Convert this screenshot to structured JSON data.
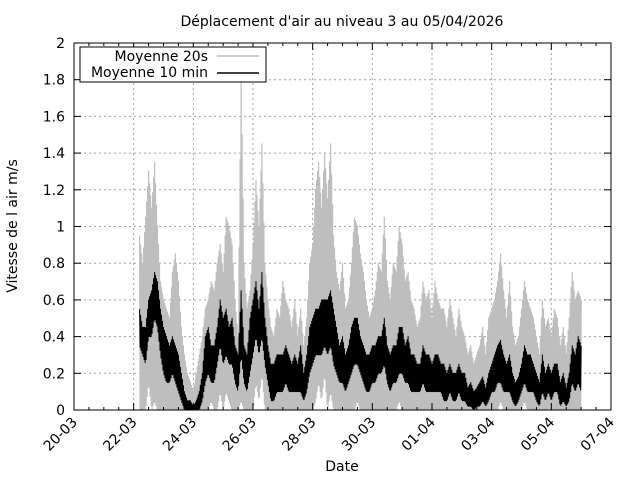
{
  "chart_data": {
    "type": "line",
    "title": "Déplacement d'air au niveau 3 au 05/04/2026",
    "xlabel": "Date",
    "ylabel": "Vitesse de l air m/s",
    "x_tick_labels": [
      "20-03",
      "22-03",
      "24-03",
      "26-03",
      "28-03",
      "30-03",
      "01-04",
      "03-04",
      "05-04",
      "07-04"
    ],
    "x_tick_days": [
      0,
      2,
      4,
      6,
      8,
      10,
      12,
      14,
      16,
      18
    ],
    "x_range_days": [
      0,
      18
    ],
    "ylim": [
      0,
      2
    ],
    "y_ticks": [
      0,
      0.2,
      0.4,
      0.6,
      0.8,
      1,
      1.2,
      1.4,
      1.6,
      1.8,
      2
    ],
    "y_tick_labels": [
      "0",
      "0.2",
      "0.4",
      "0.6",
      "0.8",
      "1",
      "1.2",
      "1.4",
      "1.6",
      "1.8",
      "2"
    ],
    "grid": true,
    "legend_position": "top-left",
    "series": [
      {
        "name": "Moyenne 20s",
        "color": "#bebebe",
        "x_days": [
          2.2,
          2.3,
          2.4,
          2.5,
          2.6,
          2.7,
          2.8,
          2.9,
          3.0,
          3.1,
          3.2,
          3.3,
          3.4,
          3.5,
          3.6,
          3.7,
          3.8,
          3.9,
          4.0,
          4.1,
          4.2,
          4.3,
          4.4,
          4.5,
          4.6,
          4.7,
          4.8,
          4.9,
          5.0,
          5.1,
          5.2,
          5.3,
          5.4,
          5.5,
          5.6,
          5.7,
          5.8,
          5.9,
          6.0,
          6.1,
          6.2,
          6.3,
          6.4,
          6.5,
          6.6,
          6.7,
          6.8,
          6.9,
          7.0,
          7.1,
          7.2,
          7.3,
          7.4,
          7.5,
          7.6,
          7.7,
          7.8,
          7.9,
          8.0,
          8.1,
          8.2,
          8.3,
          8.4,
          8.5,
          8.6,
          8.7,
          8.8,
          8.9,
          9.0,
          9.1,
          9.2,
          9.3,
          9.4,
          9.5,
          9.6,
          9.7,
          9.8,
          9.9,
          10.0,
          10.1,
          10.2,
          10.3,
          10.4,
          10.5,
          10.6,
          10.7,
          10.8,
          10.9,
          11.0,
          11.1,
          11.2,
          11.3,
          11.4,
          11.5,
          11.6,
          11.7,
          11.8,
          11.9,
          12.0,
          12.1,
          12.2,
          12.3,
          12.4,
          12.5,
          12.6,
          12.7,
          12.8,
          12.9,
          13.0,
          13.1,
          13.2,
          13.3,
          13.4,
          13.5,
          13.6,
          13.7,
          13.8,
          13.9,
          14.0,
          14.1,
          14.2,
          14.3,
          14.4,
          14.5,
          14.6,
          14.7,
          14.8,
          14.9,
          15.0,
          15.1,
          15.2,
          15.3,
          15.4,
          15.5,
          15.6,
          15.7,
          15.8,
          15.9,
          16.0,
          16.1,
          16.2,
          16.3,
          16.4,
          16.5,
          16.6,
          16.7,
          16.8,
          16.9,
          17.0
        ],
        "y_high": [
          0.95,
          0.8,
          1.05,
          1.3,
          1.1,
          1.35,
          1.0,
          0.7,
          0.6,
          0.55,
          0.5,
          0.75,
          0.85,
          0.7,
          0.45,
          0.3,
          0.2,
          0.15,
          0.1,
          0.2,
          0.3,
          0.4,
          0.55,
          0.6,
          0.7,
          0.65,
          0.8,
          0.9,
          0.75,
          1.05,
          1.0,
          0.9,
          0.6,
          0.4,
          1.85,
          0.8,
          0.55,
          0.65,
          0.9,
          1.25,
          1.0,
          1.45,
          0.8,
          0.6,
          0.45,
          0.4,
          0.55,
          0.5,
          0.7,
          0.6,
          0.55,
          0.45,
          0.6,
          0.4,
          0.55,
          0.35,
          0.5,
          0.8,
          0.9,
          1.2,
          1.35,
          1.1,
          1.4,
          1.15,
          1.45,
          0.95,
          0.75,
          0.65,
          0.8,
          0.55,
          0.6,
          0.8,
          1.05,
          1.0,
          0.85,
          0.75,
          0.6,
          0.5,
          0.55,
          0.65,
          0.8,
          0.75,
          1.05,
          0.7,
          0.6,
          0.8,
          0.75,
          1.0,
          0.9,
          0.7,
          0.75,
          0.6,
          0.55,
          0.45,
          0.5,
          0.7,
          0.6,
          0.65,
          0.5,
          0.7,
          0.6,
          0.55,
          0.55,
          0.45,
          0.6,
          0.5,
          0.4,
          0.55,
          0.45,
          0.4,
          0.3,
          0.35,
          0.25,
          0.3,
          0.35,
          0.45,
          0.3,
          0.5,
          0.55,
          0.6,
          0.7,
          0.85,
          0.65,
          0.5,
          0.7,
          0.45,
          0.35,
          0.4,
          0.55,
          0.7,
          0.6,
          0.55,
          0.5,
          0.4,
          0.3,
          0.6,
          0.45,
          0.5,
          0.4,
          0.55,
          0.5,
          0.35,
          0.45,
          0.3,
          0.5,
          0.75,
          0.6,
          0.65,
          0.6
        ],
        "y_low": [
          0.0,
          0.0,
          0.0,
          0.15,
          0.0,
          0.05,
          0.0,
          0.0,
          0.0,
          0.0,
          0.0,
          0.0,
          0.0,
          0.0,
          0.0,
          0.0,
          0.0,
          0.0,
          0.0,
          0.0,
          0.0,
          0.0,
          0.0,
          0.0,
          0.05,
          0.0,
          0.0,
          0.1,
          0.0,
          0.1,
          0.05,
          0.0,
          0.0,
          0.0,
          0.05,
          0.0,
          0.0,
          0.0,
          0.0,
          0.15,
          0.05,
          0.2,
          0.0,
          0.0,
          0.0,
          0.0,
          0.0,
          0.0,
          0.0,
          0.0,
          0.0,
          0.0,
          0.0,
          0.0,
          0.0,
          0.0,
          0.0,
          0.0,
          0.0,
          0.05,
          0.15,
          0.05,
          0.2,
          0.0,
          0.1,
          0.0,
          0.0,
          0.0,
          0.0,
          0.0,
          0.0,
          0.0,
          0.0,
          0.05,
          0.0,
          0.0,
          0.0,
          0.0,
          0.0,
          0.0,
          0.0,
          0.0,
          0.0,
          0.0,
          0.0,
          0.0,
          0.0,
          0.05,
          0.0,
          0.0,
          0.0,
          0.0,
          0.0,
          0.0,
          0.0,
          0.0,
          0.0,
          0.0,
          0.0,
          0.0,
          0.0,
          0.0,
          0.0,
          0.0,
          0.0,
          0.0,
          0.0,
          0.0,
          0.0,
          0.0,
          0.0,
          0.0,
          0.0,
          0.0,
          0.0,
          0.0,
          0.0,
          0.0,
          0.0,
          0.0,
          0.0,
          0.05,
          0.0,
          0.0,
          0.0,
          0.0,
          0.0,
          0.0,
          0.0,
          0.05,
          0.0,
          0.0,
          0.0,
          0.0,
          0.0,
          0.0,
          0.0,
          0.0,
          0.0,
          0.0,
          0.0,
          0.0,
          0.0,
          0.0,
          0.0,
          0.0,
          0.0,
          0.0,
          0.0
        ]
      },
      {
        "name": "Moyenne 10 min",
        "color": "#000000",
        "x_days": [
          2.2,
          2.3,
          2.4,
          2.5,
          2.6,
          2.7,
          2.8,
          2.9,
          3.0,
          3.1,
          3.2,
          3.3,
          3.4,
          3.5,
          3.6,
          3.7,
          3.8,
          3.9,
          4.0,
          4.1,
          4.2,
          4.3,
          4.4,
          4.5,
          4.6,
          4.7,
          4.8,
          4.9,
          5.0,
          5.1,
          5.2,
          5.3,
          5.4,
          5.5,
          5.6,
          5.7,
          5.8,
          5.9,
          6.0,
          6.1,
          6.2,
          6.3,
          6.4,
          6.5,
          6.6,
          6.7,
          6.8,
          6.9,
          7.0,
          7.1,
          7.2,
          7.3,
          7.4,
          7.5,
          7.6,
          7.7,
          7.8,
          7.9,
          8.0,
          8.1,
          8.2,
          8.3,
          8.4,
          8.5,
          8.6,
          8.7,
          8.8,
          8.9,
          9.0,
          9.1,
          9.2,
          9.3,
          9.4,
          9.5,
          9.6,
          9.7,
          9.8,
          9.9,
          10.0,
          10.1,
          10.2,
          10.3,
          10.4,
          10.5,
          10.6,
          10.7,
          10.8,
          10.9,
          11.0,
          11.1,
          11.2,
          11.3,
          11.4,
          11.5,
          11.6,
          11.7,
          11.8,
          11.9,
          12.0,
          12.1,
          12.2,
          12.3,
          12.4,
          12.5,
          12.6,
          12.7,
          12.8,
          12.9,
          13.0,
          13.1,
          13.2,
          13.3,
          13.4,
          13.5,
          13.6,
          13.7,
          13.8,
          13.9,
          14.0,
          14.1,
          14.2,
          14.3,
          14.4,
          14.5,
          14.6,
          14.7,
          14.8,
          14.9,
          15.0,
          15.1,
          15.2,
          15.3,
          15.4,
          15.5,
          15.6,
          15.7,
          15.8,
          15.9,
          16.0,
          16.1,
          16.2,
          16.3,
          16.4,
          16.5,
          16.6,
          16.7,
          16.8,
          16.9,
          17.0
        ],
        "y_high": [
          0.55,
          0.45,
          0.45,
          0.6,
          0.65,
          0.75,
          0.7,
          0.55,
          0.45,
          0.4,
          0.35,
          0.4,
          0.35,
          0.3,
          0.2,
          0.1,
          0.05,
          0.05,
          0.02,
          0.05,
          0.1,
          0.2,
          0.4,
          0.45,
          0.35,
          0.35,
          0.45,
          0.6,
          0.5,
          0.55,
          0.45,
          0.5,
          0.35,
          0.3,
          0.65,
          0.35,
          0.3,
          0.5,
          0.6,
          0.7,
          0.55,
          0.75,
          0.5,
          0.35,
          0.25,
          0.25,
          0.3,
          0.3,
          0.3,
          0.35,
          0.3,
          0.25,
          0.3,
          0.25,
          0.35,
          0.2,
          0.3,
          0.45,
          0.5,
          0.55,
          0.55,
          0.6,
          0.6,
          0.6,
          0.65,
          0.55,
          0.45,
          0.35,
          0.4,
          0.3,
          0.35,
          0.45,
          0.5,
          0.5,
          0.4,
          0.35,
          0.3,
          0.3,
          0.35,
          0.35,
          0.4,
          0.4,
          0.5,
          0.35,
          0.3,
          0.35,
          0.35,
          0.45,
          0.45,
          0.35,
          0.4,
          0.3,
          0.3,
          0.25,
          0.25,
          0.35,
          0.3,
          0.3,
          0.25,
          0.3,
          0.3,
          0.25,
          0.25,
          0.2,
          0.25,
          0.2,
          0.2,
          0.25,
          0.2,
          0.2,
          0.12,
          0.15,
          0.1,
          0.12,
          0.15,
          0.18,
          0.12,
          0.2,
          0.25,
          0.3,
          0.35,
          0.38,
          0.3,
          0.25,
          0.3,
          0.2,
          0.15,
          0.18,
          0.25,
          0.35,
          0.3,
          0.3,
          0.25,
          0.2,
          0.15,
          0.3,
          0.2,
          0.25,
          0.2,
          0.25,
          0.25,
          0.15,
          0.2,
          0.12,
          0.2,
          0.35,
          0.3,
          0.4,
          0.35
        ],
        "y_low": [
          0.35,
          0.3,
          0.25,
          0.4,
          0.4,
          0.5,
          0.45,
          0.3,
          0.2,
          0.15,
          0.15,
          0.2,
          0.15,
          0.1,
          0.05,
          0.0,
          0.0,
          0.0,
          0.0,
          0.0,
          0.0,
          0.05,
          0.15,
          0.2,
          0.15,
          0.15,
          0.25,
          0.35,
          0.25,
          0.3,
          0.25,
          0.25,
          0.15,
          0.1,
          0.3,
          0.15,
          0.1,
          0.2,
          0.3,
          0.4,
          0.3,
          0.4,
          0.25,
          0.15,
          0.05,
          0.05,
          0.1,
          0.1,
          0.1,
          0.15,
          0.1,
          0.1,
          0.1,
          0.1,
          0.1,
          0.05,
          0.1,
          0.2,
          0.25,
          0.3,
          0.3,
          0.3,
          0.35,
          0.3,
          0.35,
          0.25,
          0.2,
          0.15,
          0.15,
          0.1,
          0.15,
          0.2,
          0.25,
          0.25,
          0.2,
          0.15,
          0.1,
          0.1,
          0.15,
          0.15,
          0.2,
          0.2,
          0.25,
          0.15,
          0.1,
          0.15,
          0.15,
          0.2,
          0.2,
          0.15,
          0.15,
          0.1,
          0.1,
          0.1,
          0.1,
          0.15,
          0.1,
          0.1,
          0.1,
          0.1,
          0.1,
          0.1,
          0.05,
          0.05,
          0.1,
          0.05,
          0.05,
          0.1,
          0.05,
          0.05,
          0.02,
          0.02,
          0.0,
          0.02,
          0.02,
          0.05,
          0.02,
          0.05,
          0.1,
          0.1,
          0.15,
          0.15,
          0.1,
          0.1,
          0.1,
          0.05,
          0.02,
          0.05,
          0.1,
          0.15,
          0.1,
          0.1,
          0.1,
          0.05,
          0.02,
          0.1,
          0.05,
          0.1,
          0.05,
          0.1,
          0.1,
          0.02,
          0.05,
          0.02,
          0.05,
          0.15,
          0.1,
          0.15,
          0.1
        ]
      }
    ]
  }
}
